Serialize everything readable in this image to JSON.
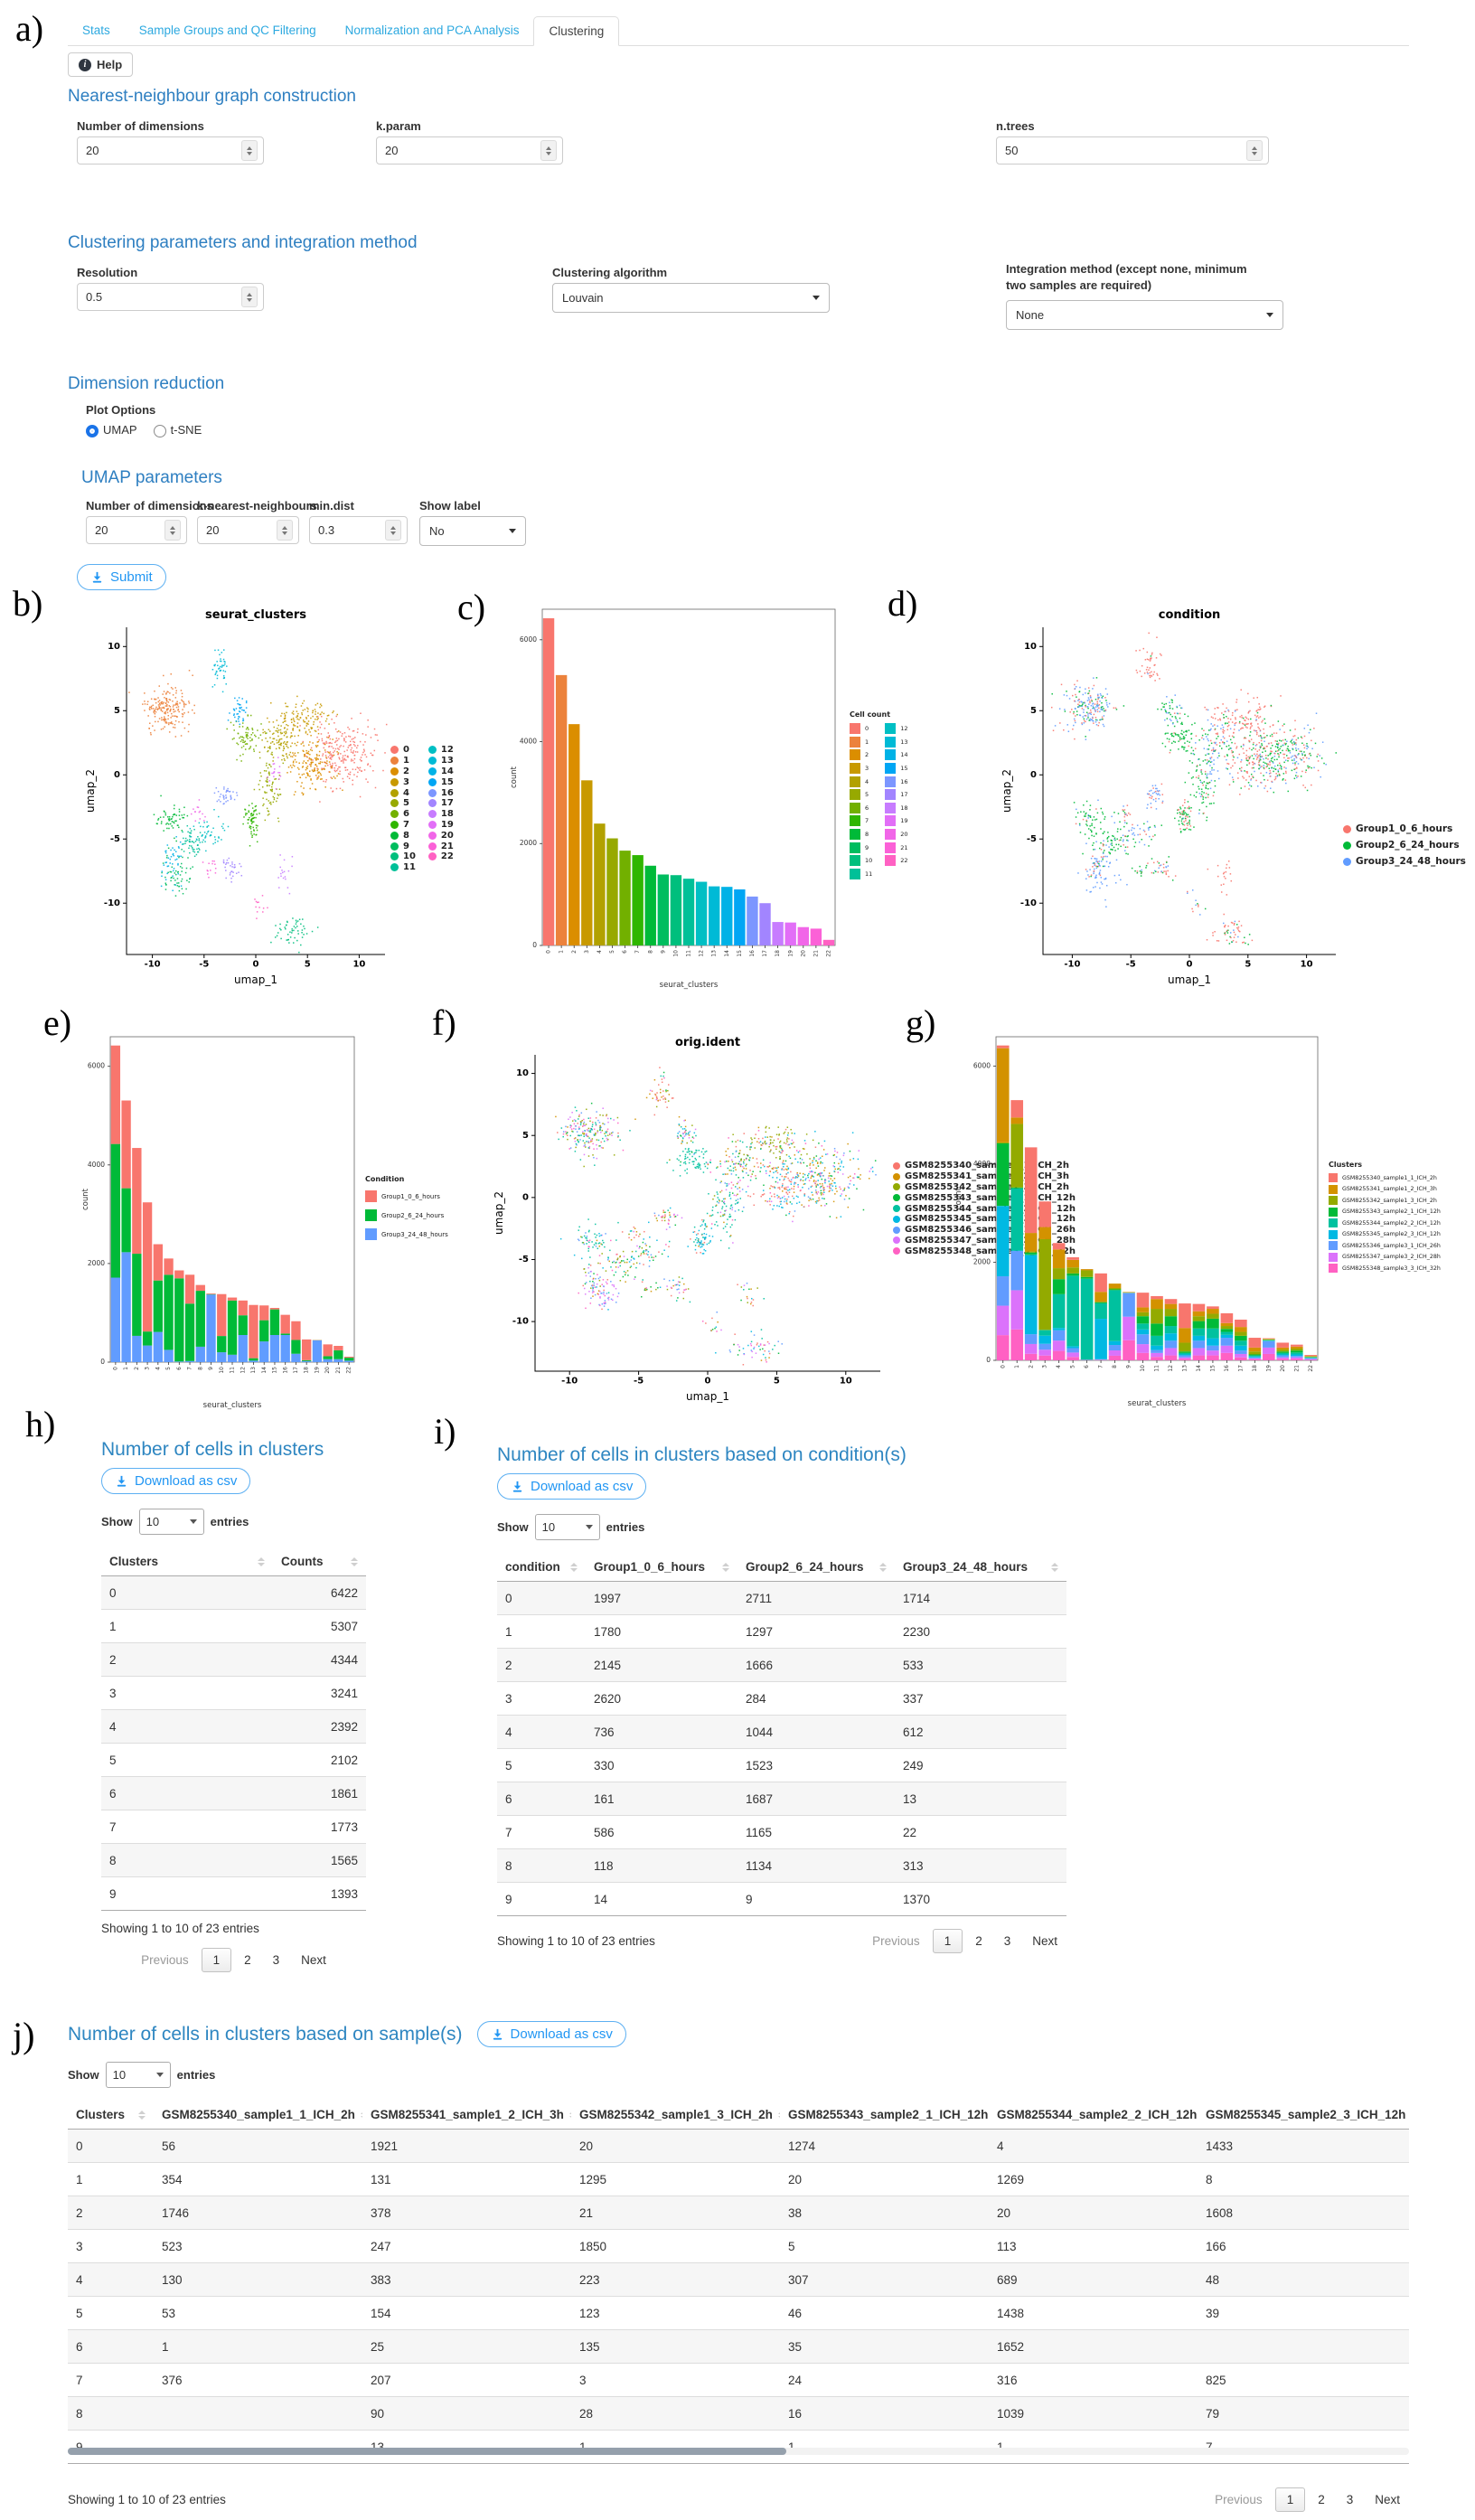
{
  "tabs": {
    "items": [
      {
        "label": "Stats",
        "active": false
      },
      {
        "label": "Sample Groups and QC Filtering",
        "active": false
      },
      {
        "label": "Normalization and PCA Analysis",
        "active": false
      },
      {
        "label": "Clustering",
        "active": true
      }
    ]
  },
  "help": {
    "label": "Help"
  },
  "letters": {
    "a": "a)",
    "b": "b)",
    "c": "c)",
    "d": "d)",
    "e": "e)",
    "f": "f)",
    "g": "g)",
    "h": "h)",
    "i": "i)",
    "j": "j)"
  },
  "form": {
    "nn_title": "Nearest-neighbour graph construction",
    "ndims_label": "Number of dimensions",
    "ndims_value": "20",
    "kparam_label": "k.param",
    "kparam_value": "20",
    "ntrees_label": "n.trees",
    "ntrees_value": "50",
    "clust_title": "Clustering parameters and integration method",
    "resolution_label": "Resolution",
    "resolution_value": "0.5",
    "algorithm_label": "Clustering algorithm",
    "algorithm_value": "Louvain",
    "integration_label_line1": "Integration method (except none, minimum",
    "integration_label_line2": "two samples are required)",
    "integration_value": "None",
    "dimred_title": "Dimension reduction",
    "plot_options_label": "Plot Options",
    "radio_umap": "UMAP",
    "radio_tsne": "t-SNE",
    "umap_title": "UMAP parameters",
    "umap_ndims_label": "Number of dimensions",
    "umap_ndims_value": "20",
    "knn_label": "k-nearest-neighbours",
    "knn_value": "20",
    "mindist_label": "min.dist",
    "mindist_value": "0.3",
    "showlabel_label": "Show label",
    "showlabel_value": "No",
    "submit_label": "Submit"
  },
  "datatable_ui": {
    "show": "Show",
    "entries": "entries",
    "previous": "Previous",
    "next": "Next"
  },
  "chart_data": [
    {
      "id": "umap_seurat_clusters",
      "type": "scatter",
      "title": "seurat_clusters",
      "xlabel": "umap_1",
      "ylabel": "umap_2",
      "xlim": [
        -12.5,
        12.5
      ],
      "ylim": [
        -14,
        11.5
      ],
      "xticks": [
        -10,
        -5,
        0,
        5,
        10
      ],
      "yticks": [
        -10,
        -5,
        0,
        5,
        10
      ],
      "legend": [
        "0",
        "1",
        "2",
        "3",
        "4",
        "5",
        "6",
        "7",
        "8",
        "9",
        "10",
        "11",
        "12",
        "13",
        "14",
        "15",
        "16",
        "17",
        "18",
        "19",
        "20",
        "21",
        "22"
      ],
      "colors": [
        "#F8766D",
        "#EC823C",
        "#DB8E00",
        "#C89900",
        "#B2A100",
        "#97A900",
        "#72B000",
        "#2FB600",
        "#00BA38",
        "#00BD5F",
        "#00BF7D",
        "#00C098",
        "#00BFC4",
        "#00BAD6",
        "#00B2E6",
        "#00A6F4",
        "#7C96FF",
        "#A285FF",
        "#C77CFF",
        "#E26EF7",
        "#F166E8",
        "#FB61D7",
        "#FF61C3"
      ],
      "counts": [
        6422,
        5307,
        4344,
        3241,
        2392,
        2102,
        1861,
        1773,
        1565,
        1393,
        1380,
        1310,
        1250,
        1160,
        1150,
        1100,
        960,
        830,
        460,
        450,
        360,
        330,
        110
      ],
      "blobs": [
        [
          8.3,
          1.6,
          3.0,
          2.6
        ],
        [
          -8.6,
          5.2,
          2.1,
          1.7
        ],
        [
          5.4,
          1.0,
          2.6,
          2.2
        ],
        [
          4.6,
          4.3,
          2.6,
          1.5
        ],
        [
          2.2,
          2.8,
          1.8,
          1.7
        ],
        [
          1.2,
          -0.8,
          1.2,
          2.4
        ],
        [
          -0.9,
          3.0,
          1.4,
          1.5
        ],
        [
          -0.4,
          -3.4,
          0.7,
          1.3
        ],
        [
          -8.3,
          -3.6,
          1.6,
          1.4
        ],
        [
          -7.6,
          -7.8,
          1.5,
          1.7
        ],
        [
          3.6,
          -12.2,
          1.9,
          1.2
        ],
        [
          -6.3,
          -5.3,
          1.3,
          1.2
        ],
        [
          -4.3,
          -4.6,
          1.7,
          1.3
        ],
        [
          -3.4,
          8.4,
          0.9,
          1.9
        ],
        [
          -8.0,
          -6.6,
          1.0,
          1.9
        ],
        [
          -1.6,
          4.9,
          1.0,
          1.0
        ],
        [
          -3.0,
          -1.6,
          1.0,
          0.9
        ],
        [
          -2.3,
          -7.3,
          1.1,
          0.9
        ],
        [
          2.9,
          -7.6,
          0.9,
          1.6
        ],
        [
          1.9,
          0.2,
          0.8,
          1.3
        ],
        [
          -5.6,
          -2.9,
          0.7,
          0.9
        ],
        [
          -4.3,
          -7.4,
          0.7,
          0.7
        ],
        [
          0.4,
          -10.1,
          0.6,
          0.8
        ]
      ]
    },
    {
      "id": "cell_count_bar",
      "type": "bar",
      "title": "",
      "xlabel": "seurat_clusters",
      "ylabel": "count",
      "legend_title": "Cell count",
      "yticks": [
        0,
        2000,
        4000,
        6000
      ],
      "ylim": [
        0,
        6600
      ],
      "categories": [
        "0",
        "1",
        "2",
        "3",
        "4",
        "5",
        "6",
        "7",
        "8",
        "9",
        "10",
        "11",
        "12",
        "13",
        "14",
        "15",
        "16",
        "17",
        "18",
        "19",
        "20",
        "21",
        "22"
      ],
      "values": [
        6422,
        5307,
        4344,
        3241,
        2392,
        2102,
        1861,
        1773,
        1565,
        1393,
        1380,
        1310,
        1250,
        1160,
        1150,
        1100,
        960,
        830,
        460,
        450,
        360,
        330,
        110
      ],
      "colors": [
        "#F8766D",
        "#EC823C",
        "#DB8E00",
        "#C89900",
        "#B2A100",
        "#97A900",
        "#72B000",
        "#2FB600",
        "#00BA38",
        "#00BD5F",
        "#00BF7D",
        "#00C098",
        "#00BFC4",
        "#00BAD6",
        "#00B2E6",
        "#00A6F4",
        "#7C96FF",
        "#A285FF",
        "#C77CFF",
        "#E26EF7",
        "#F166E8",
        "#FB61D7",
        "#FF61C3"
      ]
    },
    {
      "id": "umap_condition",
      "type": "scatter",
      "title": "condition",
      "xlabel": "umap_1",
      "ylabel": "umap_2",
      "legend": [
        "Group1_0_6_hours",
        "Group2_6_24_hours",
        "Group3_24_48_hours"
      ],
      "colors": [
        "#F8766D",
        "#00BA38",
        "#619CFF"
      ]
    },
    {
      "id": "condition_stacked_bar",
      "type": "stacked-bar",
      "xlabel": "seurat_clusters",
      "ylabel": "count",
      "legend_title": "Condition",
      "yticks": [
        0,
        2000,
        4000,
        6000
      ],
      "ylim": [
        0,
        6600
      ],
      "categories": [
        "0",
        "1",
        "2",
        "3",
        "4",
        "5",
        "6",
        "7",
        "8",
        "9",
        "10",
        "11",
        "12",
        "13",
        "14",
        "15",
        "16",
        "17",
        "18",
        "19",
        "20",
        "21",
        "22"
      ],
      "series": [
        {
          "name": "Group1_0_6_hours",
          "color": "#F8766D",
          "values": [
            1997,
            1780,
            2145,
            2620,
            736,
            330,
            161,
            586,
            118,
            14,
            850,
            60,
            300,
            1080,
            300,
            30,
            380,
            380,
            420,
            5,
            240,
            90,
            20
          ]
        },
        {
          "name": "Group2_6_24_hours",
          "color": "#00BA38",
          "values": [
            2711,
            1297,
            1666,
            284,
            1044,
            1523,
            1687,
            1165,
            1134,
            9,
            330,
            1100,
            400,
            50,
            430,
            520,
            30,
            280,
            20,
            5,
            60,
            180,
            60
          ]
        },
        {
          "name": "Group3_24_48_hours",
          "color": "#619CFF",
          "values": [
            1714,
            2230,
            533,
            337,
            612,
            249,
            13,
            22,
            313,
            1370,
            200,
            150,
            550,
            30,
            420,
            550,
            550,
            170,
            20,
            440,
            60,
            60,
            30
          ]
        }
      ]
    },
    {
      "id": "umap_orig_ident",
      "type": "scatter",
      "title": "orig.ident",
      "xlabel": "umap_1",
      "ylabel": "umap_2",
      "legend": [
        "GSM8255340_sample1_1_ICH_2h",
        "GSM8255341_sample1_2_ICH_3h",
        "GSM8255342_sample1_3_ICH_2h",
        "GSM8255343_sample2_1_ICH_12h",
        "GSM8255344_sample2_2_ICH_12h",
        "GSM8255345_sample2_3_ICH_12h",
        "GSM8255346_sample3_1_ICH_26h",
        "GSM8255347_sample3_2_ICH_28h",
        "GSM8255348_sample3_3_ICH_32h"
      ],
      "colors": [
        "#F8766D",
        "#D39200",
        "#93AA00",
        "#00BA38",
        "#00C19F",
        "#00B9E3",
        "#619CFF",
        "#DB72FB",
        "#FF61C3"
      ]
    },
    {
      "id": "sample_stacked_bar",
      "type": "stacked-bar",
      "xlabel": "seurat_clusters",
      "ylabel": "count",
      "legend_title": "Clusters",
      "yticks": [
        0,
        2000,
        4000,
        6000
      ],
      "ylim": [
        0,
        6600
      ],
      "categories": [
        "0",
        "1",
        "2",
        "3",
        "4",
        "5",
        "6",
        "7",
        "8",
        "9",
        "10",
        "11",
        "12",
        "13",
        "14",
        "15",
        "16",
        "17",
        "18",
        "19",
        "20",
        "21",
        "22"
      ],
      "series": [
        {
          "name": "GSM8255340_sample1_1_ICH_2h",
          "color": "#F8766D",
          "values": [
            56,
            354,
            1746,
            523,
            130,
            53,
            1,
            376,
            0,
            0,
            300,
            60,
            100,
            500,
            150,
            50,
            200,
            150,
            200,
            10,
            100,
            40,
            20
          ]
        },
        {
          "name": "GSM8255341_sample1_2_ICH_3h",
          "color": "#D39200",
          "values": [
            1921,
            131,
            378,
            247,
            383,
            154,
            25,
            207,
            90,
            13,
            100,
            200,
            100,
            300,
            100,
            100,
            60,
            100,
            80,
            10,
            40,
            40,
            10
          ]
        },
        {
          "name": "GSM8255342_sample1_3_ICH_2h",
          "color": "#93AA00",
          "values": [
            20,
            1295,
            21,
            1850,
            223,
            123,
            135,
            3,
            28,
            1,
            80,
            300,
            150,
            180,
            100,
            100,
            60,
            80,
            60,
            10,
            40,
            40,
            10
          ]
        },
        {
          "name": "GSM8255343_sample2_1_ICH_12h",
          "color": "#00BA38",
          "values": [
            1274,
            20,
            38,
            5,
            307,
            46,
            35,
            24,
            16,
            1,
            150,
            250,
            200,
            30,
            150,
            200,
            60,
            100,
            20,
            10,
            30,
            40,
            10
          ]
        },
        {
          "name": "GSM8255344_sample2_2_ICH_12h",
          "color": "#00C19F",
          "values": [
            4,
            1269,
            20,
            113,
            689,
            1438,
            1652,
            316,
            1039,
            1,
            120,
            200,
            150,
            30,
            150,
            200,
            60,
            100,
            20,
            10,
            30,
            40,
            10
          ]
        },
        {
          "name": "GSM8255345_sample2_3_ICH_12h",
          "color": "#00B9E3",
          "values": [
            1433,
            8,
            1608,
            166,
            48,
            39,
            0,
            825,
            79,
            7,
            100,
            90,
            150,
            20,
            100,
            150,
            60,
            100,
            20,
            10,
            20,
            30,
            10
          ]
        },
        {
          "name": "GSM8255346_sample3_1_ICH_26h",
          "color": "#619CFF",
          "values": [
            600,
            800,
            200,
            120,
            210,
            90,
            5,
            8,
            110,
            480,
            200,
            60,
            150,
            40,
            150,
            100,
            160,
            70,
            20,
            130,
            40,
            30,
            15
          ]
        },
        {
          "name": "GSM8255347_sample3_2_ICH_28h",
          "color": "#DB72FB",
          "values": [
            600,
            800,
            200,
            120,
            210,
            90,
            5,
            8,
            110,
            480,
            180,
            80,
            150,
            30,
            150,
            100,
            150,
            70,
            20,
            130,
            30,
            30,
            15
          ]
        },
        {
          "name": "GSM8255348_sample3_3_ICH_32h",
          "color": "#FF61C3",
          "values": [
            514,
            630,
            133,
            97,
            192,
            69,
            3,
            6,
            93,
            410,
            150,
            70,
            100,
            30,
            100,
            100,
            150,
            60,
            20,
            130,
            30,
            30,
            10
          ]
        }
      ]
    }
  ],
  "tables": {
    "clusters": {
      "title": "Number of cells in clusters",
      "download_label": "Download as csv",
      "show_value": "10",
      "columns": [
        "Clusters",
        "Counts"
      ],
      "rows": [
        [
          "0",
          "6422"
        ],
        [
          "1",
          "5307"
        ],
        [
          "2",
          "4344"
        ],
        [
          "3",
          "3241"
        ],
        [
          "4",
          "2392"
        ],
        [
          "5",
          "2102"
        ],
        [
          "6",
          "1861"
        ],
        [
          "7",
          "1773"
        ],
        [
          "8",
          "1565"
        ],
        [
          "9",
          "1393"
        ]
      ],
      "footer": "Showing 1 to 10 of 23 entries",
      "pagination": {
        "previous": "Previous",
        "pages": [
          "1",
          "2",
          "3"
        ],
        "active": "1",
        "next": "Next"
      }
    },
    "condition": {
      "title": "Number of cells in clusters based on condition(s)",
      "download_label": "Download as csv",
      "show_value": "10",
      "columns": [
        "condition",
        "Group1_0_6_hours",
        "Group2_6_24_hours",
        "Group3_24_48_hours"
      ],
      "rows": [
        [
          "0",
          "1997",
          "2711",
          "1714"
        ],
        [
          "1",
          "1780",
          "1297",
          "2230"
        ],
        [
          "2",
          "2145",
          "1666",
          "533"
        ],
        [
          "3",
          "2620",
          "284",
          "337"
        ],
        [
          "4",
          "736",
          "1044",
          "612"
        ],
        [
          "5",
          "330",
          "1523",
          "249"
        ],
        [
          "6",
          "161",
          "1687",
          "13"
        ],
        [
          "7",
          "586",
          "1165",
          "22"
        ],
        [
          "8",
          "118",
          "1134",
          "313"
        ],
        [
          "9",
          "14",
          "9",
          "1370"
        ]
      ],
      "footer": "Showing 1 to 10 of 23 entries",
      "pagination": {
        "previous": "Previous",
        "pages": [
          "1",
          "2",
          "3"
        ],
        "active": "1",
        "next": "Next"
      }
    },
    "samples": {
      "title": "Number of cells in clusters based on sample(s)",
      "download_label": "Download as csv",
      "show_value": "10",
      "columns": [
        "Clusters",
        "GSM8255340_sample1_1_ICH_2h",
        "GSM8255341_sample1_2_ICH_3h",
        "GSM8255342_sample1_3_ICH_2h",
        "GSM8255343_sample2_1_ICH_12h",
        "GSM8255344_sample2_2_ICH_12h",
        "GSM8255345_sample2_3_ICH_12h"
      ],
      "rows": [
        [
          "0",
          "56",
          "1921",
          "20",
          "1274",
          "4",
          "1433"
        ],
        [
          "1",
          "354",
          "131",
          "1295",
          "20",
          "1269",
          "8"
        ],
        [
          "2",
          "1746",
          "378",
          "21",
          "38",
          "20",
          "1608"
        ],
        [
          "3",
          "523",
          "247",
          "1850",
          "5",
          "113",
          "166"
        ],
        [
          "4",
          "130",
          "383",
          "223",
          "307",
          "689",
          "48"
        ],
        [
          "5",
          "53",
          "154",
          "123",
          "46",
          "1438",
          "39"
        ],
        [
          "6",
          "1",
          "25",
          "135",
          "35",
          "1652",
          ""
        ],
        [
          "7",
          "376",
          "207",
          "3",
          "24",
          "316",
          "825"
        ],
        [
          "8",
          "",
          "90",
          "28",
          "16",
          "1039",
          "79"
        ],
        [
          "9",
          "",
          "13",
          "1",
          "1",
          "1",
          "7"
        ]
      ],
      "footer": "Showing 1 to 10 of 23 entries",
      "pagination": {
        "previous": "Previous",
        "pages": [
          "1",
          "2",
          "3"
        ],
        "active": "1",
        "next": "Next"
      }
    }
  }
}
